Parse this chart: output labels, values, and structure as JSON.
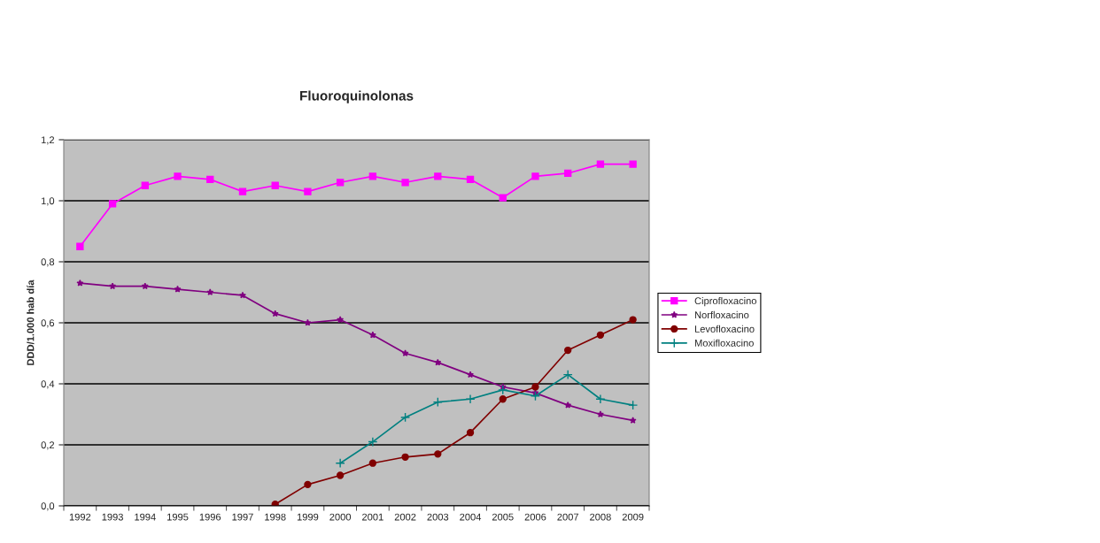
{
  "chart_data": {
    "type": "line",
    "title": "Fluoroquinolonas",
    "ylabel": "DDD/1.000 hab día",
    "categories": [
      "1992",
      "1993",
      "1994",
      "1995",
      "1996",
      "1997",
      "1998",
      "1999",
      "2000",
      "2001",
      "2002",
      "2003",
      "2004",
      "2005",
      "2006",
      "2007",
      "2008",
      "2009"
    ],
    "series": [
      {
        "name": "Ciprofloxacino",
        "color": "#ff00ff",
        "marker": "square",
        "values": [
          0.85,
          0.99,
          1.05,
          1.08,
          1.07,
          1.03,
          1.05,
          1.03,
          1.06,
          1.08,
          1.06,
          1.08,
          1.07,
          1.01,
          1.08,
          1.09,
          1.12,
          1.12
        ]
      },
      {
        "name": "Norfloxacino",
        "color": "#800080",
        "marker": "star",
        "values": [
          0.73,
          0.72,
          0.72,
          0.71,
          0.7,
          0.69,
          0.63,
          0.6,
          0.61,
          0.56,
          0.5,
          0.47,
          0.43,
          0.39,
          0.37,
          0.33,
          0.3,
          0.28
        ]
      },
      {
        "name": "Levofloxacino",
        "color": "#800000",
        "marker": "circle",
        "values": [
          null,
          null,
          null,
          null,
          null,
          null,
          0.005,
          0.07,
          0.1,
          0.14,
          0.16,
          0.17,
          0.24,
          0.35,
          0.39,
          0.51,
          0.56,
          0.61
        ]
      },
      {
        "name": "Moxifloxacino",
        "color": "#008080",
        "marker": "cross",
        "values": [
          null,
          null,
          null,
          null,
          null,
          null,
          null,
          null,
          0.14,
          0.21,
          0.29,
          0.34,
          0.35,
          0.38,
          0.36,
          0.43,
          0.35,
          0.33
        ]
      }
    ],
    "ylim": [
      0,
      1.2
    ],
    "yticks": [
      {
        "value": 0,
        "label": "0,0"
      },
      {
        "value": 0.2,
        "label": "0,2"
      },
      {
        "value": 0.4,
        "label": "0,4"
      },
      {
        "value": 0.6,
        "label": "0,6"
      },
      {
        "value": 0.8,
        "label": "0,8"
      },
      {
        "value": 1.0,
        "label": "1,0"
      },
      {
        "value": 1.2,
        "label": "1,2"
      }
    ],
    "grid": "y",
    "legend": "right",
    "line_style": "solid"
  }
}
